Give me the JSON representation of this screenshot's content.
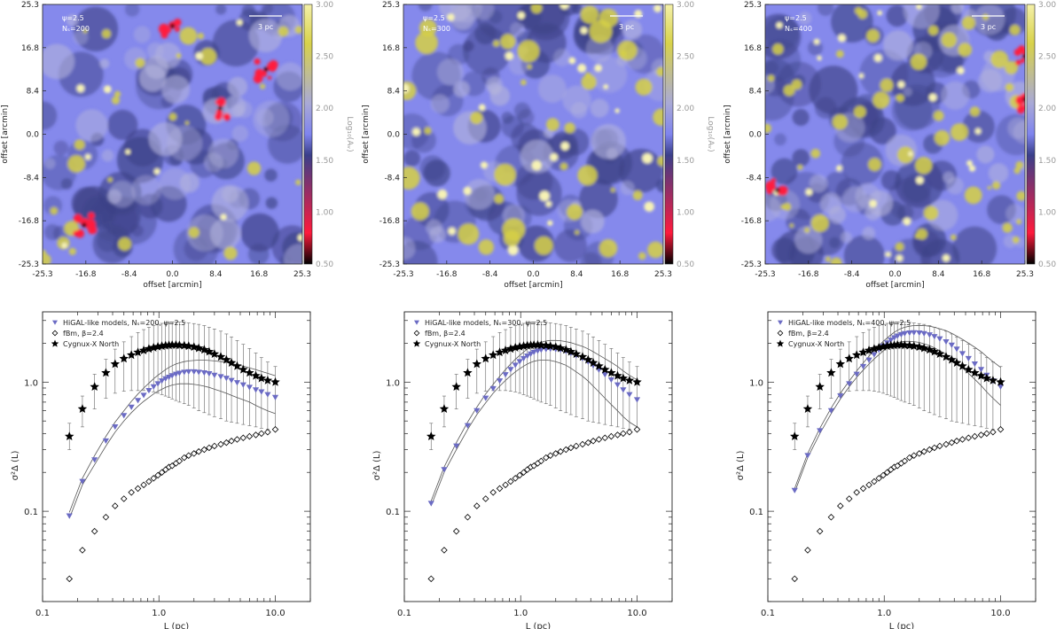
{
  "maps": [
    {
      "psi_label": "ψ=2.5",
      "ns_label": "Nₛ=200",
      "scalebar_label": "3 pc",
      "xlabel": "offset [arcmin]",
      "ylabel": "offset [arcmin]",
      "colorbar_label": "Log₁₀(Aᵥ)"
    },
    {
      "psi_label": "ψ=2.5",
      "ns_label": "Nₛ=300",
      "scalebar_label": "3 pc",
      "xlabel": "offset [arcmin]",
      "ylabel": "offset [arcmin]",
      "colorbar_label": "Log₁₀(Aᵥ)"
    },
    {
      "psi_label": "ψ=2.5",
      "ns_label": "Nₛ=400",
      "scalebar_label": "3 pc",
      "xlabel": "offset [arcmin]",
      "ylabel": "offset [arcmin]",
      "colorbar_label": "Log₁₀(Aᵥ)"
    }
  ],
  "map_axis": {
    "ticks": [
      "-25.3",
      "-16.8",
      "-8.4",
      "0.0",
      "8.4",
      "16.8",
      "25.3"
    ]
  },
  "colorbar": {
    "ticks": [
      "0.50",
      "1.00",
      "1.50",
      "2.00",
      "2.50",
      "3.00"
    ],
    "colors": [
      "#000000",
      "#ff1a3c",
      "#3a3f8a",
      "#7f84ee",
      "#a9a9d6",
      "#d8d24a",
      "#f4f0a8"
    ]
  },
  "plot_axis": {
    "xticks": [
      "0.1",
      "1.0",
      "10.0"
    ],
    "yticks": [
      "0.1",
      "1.0"
    ],
    "xlabel": "L (pc)",
    "ylabel": "σ²Δ (L)"
  },
  "colors": {
    "model": "#6b6bc4",
    "fbm": "#000000",
    "cygnus": "#000000",
    "envelope": "#555555",
    "errorbar": "#666666"
  },
  "chart_data": [
    {
      "type": "scatter",
      "xlabel": "L (pc)",
      "ylabel": "σ²Δ (L)",
      "xscale": "log",
      "yscale": "log",
      "xlim": [
        0.1,
        20
      ],
      "ylim": [
        0.02,
        3.5
      ],
      "legend": {
        "placement": "top-left",
        "entries": [
          "HiGAL-like models, Nₛ=200, ψ=2.5",
          "fBm, β=2.4",
          "Cygnux-X North"
        ]
      },
      "x": [
        0.17,
        0.22,
        0.28,
        0.35,
        0.42,
        0.5,
        0.58,
        0.66,
        0.74,
        0.82,
        0.9,
        0.98,
        1.06,
        1.14,
        1.22,
        1.3,
        1.4,
        1.5,
        1.65,
        1.8,
        2.0,
        2.2,
        2.45,
        2.7,
        3.0,
        3.4,
        3.8,
        4.2,
        4.7,
        5.3,
        6.0,
        6.8,
        7.6,
        8.6,
        10.0
      ],
      "series": [
        {
          "name": "HiGAL-like models, Nₛ=200, ψ=2.5",
          "marker": "triangle-down",
          "values": [
            0.092,
            0.17,
            0.25,
            0.35,
            0.45,
            0.55,
            0.64,
            0.72,
            0.79,
            0.86,
            0.92,
            0.97,
            1.02,
            1.06,
            1.09,
            1.12,
            1.15,
            1.17,
            1.19,
            1.2,
            1.2,
            1.19,
            1.18,
            1.16,
            1.13,
            1.1,
            1.07,
            1.03,
            0.99,
            0.95,
            0.91,
            0.87,
            0.84,
            0.8,
            0.76
          ],
          "lower": [
            0.088,
            0.16,
            0.23,
            0.32,
            0.41,
            0.5,
            0.58,
            0.65,
            0.71,
            0.76,
            0.81,
            0.85,
            0.88,
            0.91,
            0.93,
            0.95,
            0.96,
            0.97,
            0.97,
            0.97,
            0.96,
            0.95,
            0.93,
            0.91,
            0.88,
            0.85,
            0.82,
            0.79,
            0.76,
            0.73,
            0.7,
            0.66,
            0.63,
            0.6,
            0.57
          ],
          "upper": [
            0.098,
            0.18,
            0.27,
            0.38,
            0.49,
            0.6,
            0.71,
            0.81,
            0.9,
            0.98,
            1.06,
            1.13,
            1.19,
            1.25,
            1.3,
            1.34,
            1.38,
            1.41,
            1.44,
            1.46,
            1.47,
            1.48,
            1.48,
            1.47,
            1.46,
            1.44,
            1.42,
            1.39,
            1.36,
            1.33,
            1.29,
            1.25,
            1.21,
            1.17,
            1.12
          ]
        },
        {
          "name": "fBm, β=2.4",
          "marker": "diamond-open",
          "values": [
            0.03,
            0.05,
            0.07,
            0.09,
            0.11,
            0.125,
            0.14,
            0.15,
            0.16,
            0.17,
            0.18,
            0.19,
            0.2,
            0.21,
            0.22,
            0.225,
            0.235,
            0.245,
            0.26,
            0.27,
            0.28,
            0.29,
            0.3,
            0.31,
            0.32,
            0.33,
            0.34,
            0.35,
            0.36,
            0.37,
            0.38,
            0.39,
            0.4,
            0.41,
            0.43
          ]
        },
        {
          "name": "Cygnux-X North",
          "marker": "star",
          "values": [
            0.38,
            0.62,
            0.92,
            1.18,
            1.38,
            1.52,
            1.62,
            1.7,
            1.76,
            1.81,
            1.85,
            1.88,
            1.9,
            1.92,
            1.93,
            1.94,
            1.94,
            1.93,
            1.92,
            1.9,
            1.87,
            1.83,
            1.78,
            1.72,
            1.65,
            1.57,
            1.49,
            1.41,
            1.33,
            1.25,
            1.18,
            1.12,
            1.07,
            1.03,
            1.0
          ],
          "err_low": [
            0.3,
            0.45,
            0.62,
            0.75,
            0.82,
            0.85,
            0.86,
            0.86,
            0.86,
            0.85,
            0.84,
            0.82,
            0.8,
            0.78,
            0.76,
            0.74,
            0.72,
            0.7,
            0.68,
            0.66,
            0.63,
            0.6,
            0.58,
            0.56,
            0.54,
            0.52,
            0.5,
            0.49,
            0.48,
            0.47,
            0.46,
            0.45,
            0.44,
            0.43,
            0.42
          ],
          "err_high": [
            0.48,
            0.78,
            1.15,
            1.5,
            1.8,
            2.05,
            2.25,
            2.42,
            2.55,
            2.66,
            2.74,
            2.8,
            2.85,
            2.88,
            2.9,
            2.91,
            2.92,
            2.91,
            2.9,
            2.87,
            2.84,
            2.8,
            2.74,
            2.66,
            2.58,
            2.48,
            2.36,
            2.24,
            2.1,
            1.96,
            1.82,
            1.68,
            1.55,
            1.43,
            1.32
          ]
        }
      ]
    },
    {
      "type": "scatter",
      "xlabel": "L (pc)",
      "ylabel": "σ²Δ (L)",
      "xscale": "log",
      "yscale": "log",
      "xlim": [
        0.1,
        20
      ],
      "ylim": [
        0.02,
        3.5
      ],
      "legend": {
        "placement": "top-left",
        "entries": [
          "HiGAL-like models, Nₛ=300, ψ=2.5",
          "fBm, β=2.4",
          "Cygnux-X North"
        ]
      },
      "x": [
        0.17,
        0.22,
        0.28,
        0.35,
        0.42,
        0.5,
        0.58,
        0.66,
        0.74,
        0.82,
        0.9,
        0.98,
        1.06,
        1.14,
        1.22,
        1.3,
        1.4,
        1.5,
        1.65,
        1.8,
        2.0,
        2.2,
        2.45,
        2.7,
        3.0,
        3.4,
        3.8,
        4.2,
        4.7,
        5.3,
        6.0,
        6.8,
        7.6,
        8.6,
        10.0
      ],
      "series": [
        {
          "name": "HiGAL-like models, Nₛ=300, ψ=2.5",
          "marker": "triangle-down",
          "values": [
            0.115,
            0.21,
            0.32,
            0.46,
            0.6,
            0.75,
            0.89,
            1.02,
            1.14,
            1.25,
            1.35,
            1.44,
            1.52,
            1.59,
            1.65,
            1.7,
            1.74,
            1.77,
            1.79,
            1.8,
            1.79,
            1.77,
            1.73,
            1.67,
            1.6,
            1.52,
            1.43,
            1.34,
            1.24,
            1.14,
            1.04,
            0.95,
            0.87,
            0.8,
            0.73
          ],
          "lower": [
            0.11,
            0.2,
            0.3,
            0.43,
            0.56,
            0.69,
            0.82,
            0.93,
            1.03,
            1.12,
            1.2,
            1.27,
            1.33,
            1.38,
            1.42,
            1.45,
            1.47,
            1.48,
            1.48,
            1.47,
            1.44,
            1.4,
            1.35,
            1.28,
            1.2,
            1.11,
            1.02,
            0.93,
            0.84,
            0.75,
            0.67,
            0.6,
            0.54,
            0.49,
            0.45
          ],
          "upper": [
            0.12,
            0.22,
            0.34,
            0.49,
            0.64,
            0.81,
            0.96,
            1.11,
            1.25,
            1.38,
            1.5,
            1.61,
            1.71,
            1.8,
            1.88,
            1.95,
            2.0,
            2.04,
            2.08,
            2.1,
            2.1,
            2.09,
            2.06,
            2.02,
            1.96,
            1.89,
            1.81,
            1.72,
            1.62,
            1.52,
            1.42,
            1.32,
            1.22,
            1.13,
            1.04
          ]
        },
        {
          "name": "fBm, β=2.4",
          "marker": "diamond-open",
          "values": [
            0.03,
            0.05,
            0.07,
            0.09,
            0.11,
            0.125,
            0.14,
            0.15,
            0.16,
            0.17,
            0.18,
            0.19,
            0.2,
            0.21,
            0.22,
            0.225,
            0.235,
            0.245,
            0.26,
            0.27,
            0.28,
            0.29,
            0.3,
            0.31,
            0.32,
            0.33,
            0.34,
            0.35,
            0.36,
            0.37,
            0.38,
            0.39,
            0.4,
            0.41,
            0.43
          ]
        },
        {
          "name": "Cygnux-X North",
          "marker": "star",
          "values": [
            0.38,
            0.62,
            0.92,
            1.18,
            1.38,
            1.52,
            1.62,
            1.7,
            1.76,
            1.81,
            1.85,
            1.88,
            1.9,
            1.92,
            1.93,
            1.94,
            1.94,
            1.93,
            1.92,
            1.9,
            1.87,
            1.83,
            1.78,
            1.72,
            1.65,
            1.57,
            1.49,
            1.41,
            1.33,
            1.25,
            1.18,
            1.12,
            1.07,
            1.03,
            1.0
          ],
          "err_low": [
            0.3,
            0.45,
            0.62,
            0.75,
            0.82,
            0.85,
            0.86,
            0.86,
            0.86,
            0.85,
            0.84,
            0.82,
            0.8,
            0.78,
            0.76,
            0.74,
            0.72,
            0.7,
            0.68,
            0.66,
            0.63,
            0.6,
            0.58,
            0.56,
            0.54,
            0.52,
            0.5,
            0.49,
            0.48,
            0.47,
            0.46,
            0.45,
            0.44,
            0.43,
            0.42
          ],
          "err_high": [
            0.48,
            0.78,
            1.15,
            1.5,
            1.8,
            2.05,
            2.25,
            2.42,
            2.55,
            2.66,
            2.74,
            2.8,
            2.85,
            2.88,
            2.9,
            2.91,
            2.92,
            2.91,
            2.9,
            2.87,
            2.84,
            2.8,
            2.74,
            2.66,
            2.58,
            2.48,
            2.36,
            2.24,
            2.1,
            1.96,
            1.82,
            1.68,
            1.55,
            1.43,
            1.32
          ]
        }
      ]
    },
    {
      "type": "scatter",
      "xlabel": "L (pc)",
      "ylabel": "σ²Δ (L)",
      "xscale": "log",
      "yscale": "log",
      "xlim": [
        0.1,
        20
      ],
      "ylim": [
        0.02,
        3.5
      ],
      "legend": {
        "placement": "top-left",
        "entries": [
          "HiGAL-like models, Nₛ=400, ψ=2.5",
          "fBm, β=2.4",
          "Cygnux-X North"
        ]
      },
      "x": [
        0.17,
        0.22,
        0.28,
        0.35,
        0.42,
        0.5,
        0.58,
        0.66,
        0.74,
        0.82,
        0.9,
        0.98,
        1.06,
        1.14,
        1.22,
        1.3,
        1.4,
        1.5,
        1.65,
        1.8,
        2.0,
        2.2,
        2.45,
        2.7,
        3.0,
        3.4,
        3.8,
        4.2,
        4.7,
        5.3,
        6.0,
        6.8,
        7.6,
        8.6,
        10.0
      ],
      "series": [
        {
          "name": "HiGAL-like models, Nₛ=400, ψ=2.5",
          "marker": "triangle-down",
          "values": [
            0.145,
            0.27,
            0.42,
            0.6,
            0.78,
            0.97,
            1.15,
            1.32,
            1.48,
            1.63,
            1.77,
            1.9,
            2.01,
            2.11,
            2.2,
            2.27,
            2.33,
            2.37,
            2.4,
            2.41,
            2.4,
            2.37,
            2.32,
            2.25,
            2.16,
            2.05,
            1.93,
            1.8,
            1.66,
            1.52,
            1.38,
            1.25,
            1.13,
            1.02,
            0.92
          ],
          "lower": [
            0.14,
            0.26,
            0.4,
            0.57,
            0.74,
            0.92,
            1.09,
            1.24,
            1.38,
            1.51,
            1.63,
            1.74,
            1.83,
            1.91,
            1.97,
            2.02,
            2.05,
            2.07,
            2.07,
            2.06,
            2.03,
            1.98,
            1.92,
            1.84,
            1.75,
            1.64,
            1.53,
            1.41,
            1.29,
            1.17,
            1.05,
            0.94,
            0.84,
            0.75,
            0.66
          ],
          "upper": [
            0.15,
            0.28,
            0.44,
            0.63,
            0.82,
            1.02,
            1.22,
            1.41,
            1.59,
            1.76,
            1.92,
            2.07,
            2.2,
            2.32,
            2.43,
            2.52,
            2.6,
            2.66,
            2.71,
            2.74,
            2.75,
            2.74,
            2.71,
            2.66,
            2.59,
            2.5,
            2.39,
            2.27,
            2.14,
            2.0,
            1.86,
            1.72,
            1.58,
            1.44,
            1.3
          ]
        },
        {
          "name": "fBm, β=2.4",
          "marker": "diamond-open",
          "values": [
            0.03,
            0.05,
            0.07,
            0.09,
            0.11,
            0.125,
            0.14,
            0.15,
            0.16,
            0.17,
            0.18,
            0.19,
            0.2,
            0.21,
            0.22,
            0.225,
            0.235,
            0.245,
            0.26,
            0.27,
            0.28,
            0.29,
            0.3,
            0.31,
            0.32,
            0.33,
            0.34,
            0.35,
            0.36,
            0.37,
            0.38,
            0.39,
            0.4,
            0.41,
            0.43
          ]
        },
        {
          "name": "Cygnux-X North",
          "marker": "star",
          "values": [
            0.38,
            0.62,
            0.92,
            1.18,
            1.38,
            1.52,
            1.62,
            1.7,
            1.76,
            1.81,
            1.85,
            1.88,
            1.9,
            1.92,
            1.93,
            1.94,
            1.94,
            1.93,
            1.92,
            1.9,
            1.87,
            1.83,
            1.78,
            1.72,
            1.65,
            1.57,
            1.49,
            1.41,
            1.33,
            1.25,
            1.18,
            1.12,
            1.07,
            1.03,
            1.0
          ],
          "err_low": [
            0.3,
            0.45,
            0.62,
            0.75,
            0.82,
            0.85,
            0.86,
            0.86,
            0.86,
            0.85,
            0.84,
            0.82,
            0.8,
            0.78,
            0.76,
            0.74,
            0.72,
            0.7,
            0.68,
            0.66,
            0.63,
            0.6,
            0.58,
            0.56,
            0.54,
            0.52,
            0.5,
            0.49,
            0.48,
            0.47,
            0.46,
            0.45,
            0.44,
            0.43,
            0.42
          ],
          "err_high": [
            0.48,
            0.78,
            1.15,
            1.5,
            1.8,
            2.05,
            2.25,
            2.42,
            2.55,
            2.66,
            2.74,
            2.8,
            2.85,
            2.88,
            2.9,
            2.91,
            2.92,
            2.91,
            2.9,
            2.87,
            2.84,
            2.8,
            2.74,
            2.66,
            2.58,
            2.48,
            2.36,
            2.24,
            2.1,
            1.96,
            1.82,
            1.68,
            1.55,
            1.43,
            1.32
          ]
        }
      ]
    }
  ]
}
